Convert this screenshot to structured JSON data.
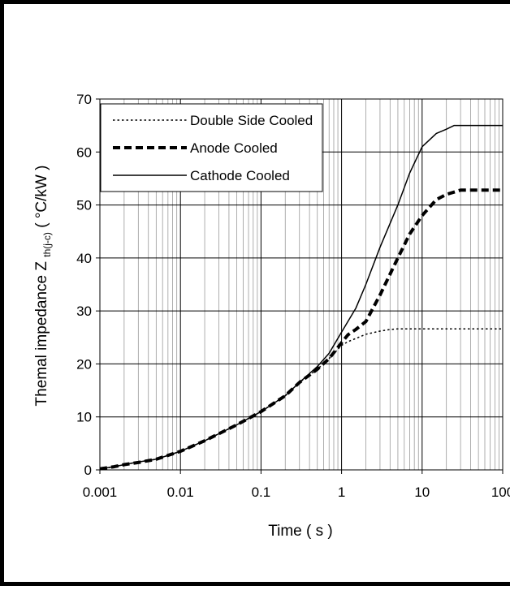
{
  "chart_data": {
    "type": "line",
    "xscale": "log",
    "xlim": [
      0.001,
      100
    ],
    "ylim": [
      0,
      70
    ],
    "x_ticks": [
      "0.001",
      "0.01",
      "0.1",
      "1",
      "10",
      "100"
    ],
    "y_ticks": [
      "0",
      "10",
      "20",
      "30",
      "40",
      "50",
      "60",
      "70"
    ],
    "xlabel": "Time ( s )",
    "ylabel": {
      "main": "Themal impedance Z",
      "subscript": "th(j-c)",
      "unit": " ( °C/kW )"
    },
    "grid": true,
    "legend_position": "top-left",
    "series": [
      {
        "name": "Double Side Cooled",
        "style": "dotted",
        "x": [
          0.001,
          0.0015,
          0.002,
          0.003,
          0.005,
          0.01,
          0.02,
          0.05,
          0.1,
          0.2,
          0.3,
          0.5,
          0.7,
          1,
          1.2,
          1.5,
          2,
          3,
          4,
          5,
          7,
          10,
          20,
          50,
          100
        ],
        "y": [
          0.2,
          0.6,
          1.0,
          1.5,
          2.0,
          3.5,
          5.5,
          8.5,
          11,
          14,
          16.5,
          19,
          21,
          23.5,
          24.2,
          24.8,
          25.6,
          26.2,
          26.5,
          26.6,
          26.6,
          26.6,
          26.6,
          26.6,
          26.6
        ]
      },
      {
        "name": "Anode Cooled",
        "style": "dashed",
        "x": [
          0.001,
          0.0015,
          0.002,
          0.003,
          0.005,
          0.01,
          0.02,
          0.05,
          0.1,
          0.2,
          0.3,
          0.5,
          0.7,
          1,
          1.2,
          1.5,
          2,
          3,
          5,
          7,
          10,
          15,
          20,
          30,
          50,
          100
        ],
        "y": [
          0.2,
          0.6,
          1.0,
          1.4,
          2.0,
          3.5,
          5.5,
          8.5,
          11,
          14,
          16.5,
          19,
          21,
          24,
          25.5,
          26.5,
          28,
          33,
          40,
          44.5,
          48,
          51,
          52,
          52.8,
          52.8,
          52.8
        ]
      },
      {
        "name": "Cathode Cooled",
        "style": "solid",
        "x": [
          0.001,
          0.0015,
          0.002,
          0.003,
          0.005,
          0.01,
          0.02,
          0.05,
          0.1,
          0.2,
          0.3,
          0.5,
          0.7,
          1,
          1.5,
          2,
          3,
          5,
          7,
          10,
          15,
          20,
          25,
          30,
          50,
          100
        ],
        "y": [
          0.2,
          0.6,
          1.0,
          1.5,
          2.0,
          3.5,
          5.5,
          8.5,
          11,
          14,
          16.5,
          19.5,
          22,
          26,
          30.5,
          35,
          42,
          50,
          56,
          61,
          63.5,
          64.3,
          65,
          65,
          65,
          65
        ]
      }
    ]
  }
}
